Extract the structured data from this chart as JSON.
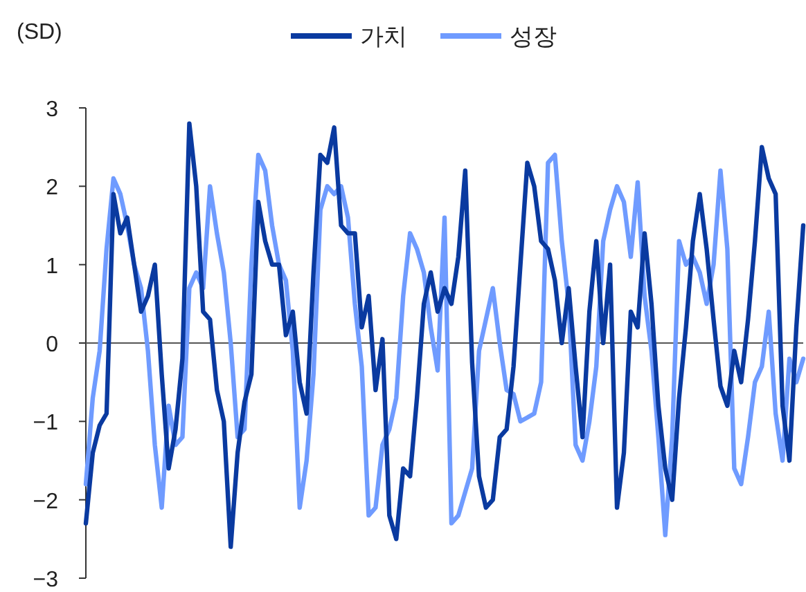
{
  "chart_data": {
    "type": "line",
    "ylabel": "(SD)",
    "ylim": [
      -3,
      3
    ],
    "yticks": [
      -3,
      -2,
      -1,
      0,
      1,
      2,
      3
    ],
    "tick_labels": "y",
    "grid": false,
    "ref_lines": [
      {
        "axis": "y",
        "value": 0,
        "color": "#555555"
      }
    ],
    "legend": "top",
    "line_style": "solid",
    "categories": [
      null,
      null,
      null,
      null,
      null,
      null,
      null,
      null,
      null,
      null,
      null,
      null,
      null,
      null,
      null,
      null,
      null,
      null,
      null,
      null,
      null,
      null,
      null,
      null,
      null,
      null,
      null,
      null,
      null,
      null,
      null,
      null,
      null,
      null,
      null,
      null,
      null,
      null,
      null,
      null,
      null,
      null,
      null,
      null,
      null,
      null,
      null,
      null,
      null,
      null,
      null,
      null,
      null,
      null,
      null,
      null,
      null,
      null,
      null,
      null,
      null,
      null,
      null,
      null,
      null,
      null,
      null,
      null,
      null,
      null,
      null,
      null,
      null,
      null,
      null,
      null,
      null,
      null,
      null,
      null,
      null,
      null,
      null,
      null,
      null,
      null,
      null,
      null,
      null,
      null,
      null,
      null,
      null,
      null,
      null,
      null,
      null,
      null,
      null,
      null,
      null,
      null,
      null,
      null,
      null
    ],
    "series": [
      {
        "name": "가치",
        "color": "#0a3aa0",
        "values": [
          -2.3,
          -1.4,
          -1.05,
          -0.9,
          1.9,
          1.4,
          1.6,
          1.0,
          0.4,
          0.6,
          1.0,
          -0.4,
          -1.6,
          -1.1,
          -0.2,
          2.8,
          2.0,
          0.4,
          0.3,
          -0.6,
          -1.0,
          -2.6,
          -1.4,
          -0.75,
          -0.4,
          1.8,
          1.3,
          1.0,
          1.0,
          0.1,
          0.4,
          -0.5,
          -0.9,
          0.9,
          2.4,
          2.3,
          2.75,
          1.5,
          1.4,
          1.4,
          0.2,
          0.6,
          -0.6,
          0.05,
          -2.2,
          -2.5,
          -1.6,
          -1.7,
          -0.7,
          0.5,
          0.9,
          0.4,
          0.7,
          0.5,
          1.1,
          2.2,
          -0.25,
          -1.7,
          -2.1,
          -2.0,
          -1.2,
          -1.1,
          -0.3,
          1.0,
          2.3,
          2.0,
          1.3,
          1.2,
          0.8,
          0.0,
          0.7,
          -0.3,
          -1.2,
          0.4,
          1.3,
          0.0,
          1.0,
          -2.1,
          -1.4,
          0.4,
          0.2,
          1.4,
          0.5,
          -0.8,
          -1.6,
          -2.0,
          -0.7,
          0.2,
          1.3,
          1.9,
          1.2,
          0.3,
          -0.55,
          -0.8,
          -0.1,
          -0.5,
          0.3,
          1.3,
          2.5,
          2.1,
          1.9,
          -0.8,
          -1.5,
          0.2,
          1.5
        ]
      },
      {
        "name": "성장",
        "color": "#6f9bff",
        "values": [
          -1.8,
          -0.7,
          -0.1,
          1.2,
          2.1,
          1.9,
          1.5,
          1.0,
          0.7,
          -0.1,
          -1.3,
          -2.1,
          -0.8,
          -1.3,
          -1.2,
          0.7,
          0.9,
          0.7,
          2.0,
          1.4,
          0.9,
          0.0,
          -1.2,
          -1.1,
          1.0,
          2.4,
          2.2,
          1.5,
          1.0,
          0.8,
          -0.1,
          -2.1,
          -1.5,
          -0.4,
          1.7,
          2.0,
          1.9,
          2.0,
          1.6,
          0.5,
          -0.3,
          -2.2,
          -2.1,
          -1.3,
          -1.1,
          -0.7,
          0.6,
          1.4,
          1.2,
          0.9,
          0.2,
          -0.35,
          1.6,
          -2.3,
          -2.2,
          -1.9,
          -1.6,
          -0.1,
          0.3,
          0.7,
          0.0,
          -0.6,
          -0.65,
          -1.0,
          -0.95,
          -0.9,
          -0.5,
          2.3,
          2.4,
          1.3,
          0.5,
          -1.3,
          -1.5,
          -1.0,
          -0.3,
          1.3,
          1.7,
          2.0,
          1.8,
          1.1,
          2.05,
          0.6,
          -0.1,
          -1.2,
          -2.45,
          -1.2,
          1.3,
          1.0,
          1.1,
          0.9,
          0.5,
          1.0,
          2.2,
          1.2,
          -1.6,
          -1.8,
          -1.2,
          -0.5,
          -0.3,
          0.4,
          -0.9,
          -1.5,
          -0.2,
          -0.5,
          -0.2
        ]
      }
    ]
  }
}
